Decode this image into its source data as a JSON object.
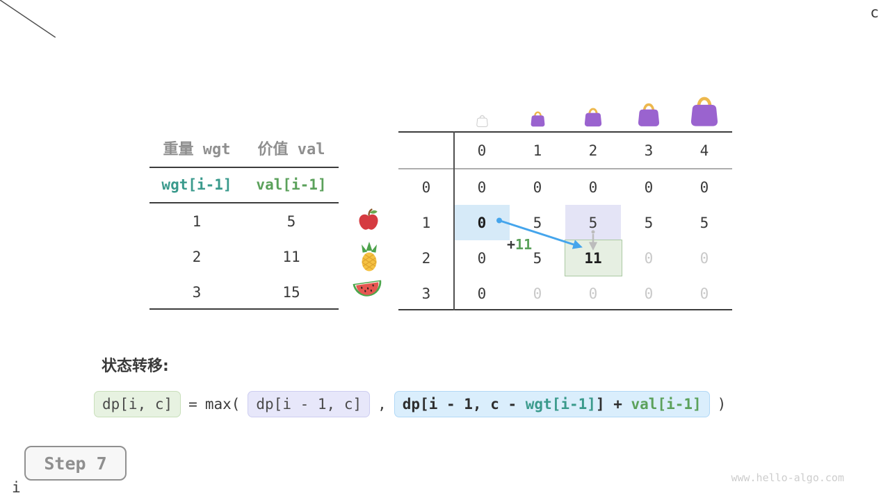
{
  "items_table": {
    "headers": [
      {
        "label": "重量 wgt"
      },
      {
        "label": "价值 val"
      }
    ],
    "index_row": [
      {
        "label": "wgt[i-1]",
        "color": "teal"
      },
      {
        "label": "val[i-1]",
        "color": "green"
      }
    ],
    "rows": [
      [
        "1",
        "5"
      ],
      [
        "2",
        "11"
      ],
      [
        "3",
        "15"
      ]
    ]
  },
  "fruits": [
    "apple",
    "pineapple",
    "watermelon"
  ],
  "dp_table": {
    "corner": {
      "col_label": "c",
      "row_label": "i"
    },
    "col_headers": [
      "0",
      "1",
      "2",
      "3",
      "4"
    ],
    "row_headers": [
      "0",
      "1",
      "2",
      "3"
    ],
    "cells": [
      [
        {
          "v": "0"
        },
        {
          "v": "0"
        },
        {
          "v": "0"
        },
        {
          "v": "0"
        },
        {
          "v": "0"
        }
      ],
      [
        {
          "v": "0",
          "bold": true
        },
        {
          "v": "5"
        },
        {
          "v": "5"
        },
        {
          "v": "5"
        },
        {
          "v": "5"
        }
      ],
      [
        {
          "v": "0"
        },
        {
          "v": "5"
        },
        {
          "v": "11",
          "bold": true
        },
        {
          "v": "0",
          "dim": true
        },
        {
          "v": "0",
          "dim": true
        }
      ],
      [
        {
          "v": "0"
        },
        {
          "v": "0",
          "dim": true
        },
        {
          "v": "0",
          "dim": true
        },
        {
          "v": "0",
          "dim": true
        },
        {
          "v": "0",
          "dim": true
        }
      ]
    ],
    "highlights": [
      {
        "cell": [
          1,
          0
        ],
        "color": "blue"
      },
      {
        "cell": [
          1,
          2
        ],
        "color": "lavender"
      },
      {
        "cell": [
          2,
          2
        ],
        "color": "green"
      }
    ],
    "transition": {
      "from_cell": [
        1,
        0
      ],
      "to_cell": [
        2,
        2
      ],
      "via_cell": [
        1,
        2
      ]
    },
    "annotation": {
      "plus": "+",
      "value": "11"
    },
    "bags": [
      {
        "style": "empty"
      },
      {
        "style": "filled"
      },
      {
        "style": "filled"
      },
      {
        "style": "filled"
      },
      {
        "style": "filled"
      }
    ]
  },
  "formula": {
    "label": "状态转移:",
    "lhs": "dp[i, c]",
    "eq": "=",
    "max_open": "max(",
    "arg1": "dp[i - 1, c]",
    "comma": ",",
    "arg2_parts": [
      {
        "text": "dp[i - 1, c - ",
        "color": "dark"
      },
      {
        "text": "wgt[i-1]",
        "color": "teal"
      },
      {
        "text": "] + ",
        "color": "dark"
      },
      {
        "text": "val[i-1]",
        "color": "green"
      }
    ],
    "close": ")"
  },
  "step_badge": {
    "label": "Step 7"
  },
  "watermark": "www.hello-algo.com",
  "colors": {
    "teal": "#3a9a8c",
    "green": "#5ba15b",
    "arrow_blue": "#45a5ec",
    "arrow_gray": "#bcbcbc",
    "highlight_blue": "#d6eaf8",
    "highlight_lavender": "#e4e4f6",
    "highlight_green": "#e6efe2",
    "bag_purple": "#9a63cf",
    "bag_handle": "#edb84d",
    "header_gray": "#8f8f8f",
    "dim_gray": "#c9c9c9"
  }
}
